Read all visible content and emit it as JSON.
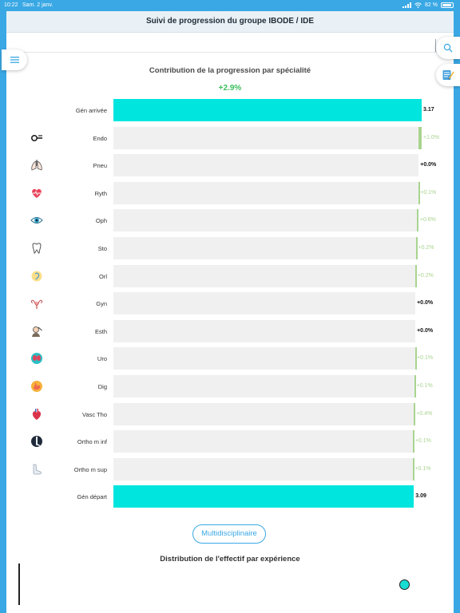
{
  "status_bar": {
    "time": "10:22",
    "date": "Sam. 2 janv.",
    "battery": "82 %"
  },
  "header": {
    "title": "Suivi de progression du groupe IBODE / IDE"
  },
  "chart_title": "Contribution de la progression par spécialité",
  "total_change": "+2.9%",
  "multi_button_label": "Multidisciplinaire",
  "distribution_title": "Distribution de l'effectif par expérience",
  "colors": {
    "accent": "#3aa8e4",
    "total": "#00e5de",
    "increase": "#a8d48f",
    "base": "#f0f0f0",
    "positive_text": "#3dbe5e"
  },
  "chart_data": {
    "type": "bar",
    "subtype": "waterfall",
    "orientation": "horizontal",
    "title": "Contribution de la progression par spécialité",
    "start": {
      "label": "Gén départ",
      "value": 3.09,
      "value_label": "3.09"
    },
    "end": {
      "label": "Gén arrivée",
      "value": 3.17,
      "value_label": "3.17"
    },
    "categories": [
      "Endo",
      "Pneu",
      "Ryth",
      "Oph",
      "Sto",
      "Orl",
      "Gyn",
      "Esth",
      "Uro",
      "Dig",
      "Vasc Tho",
      "Ortho m inf",
      "Ortho m sup"
    ],
    "icons": [
      "endoscope-icon",
      "lungs-icon",
      "heart-rhythm-icon",
      "eye-icon",
      "tooth-icon",
      "ear-icon",
      "uterus-icon",
      "cosmetic-face-icon",
      "kidneys-icon",
      "stomach-icon",
      "heart-icon",
      "leg-icon",
      "arm-icon"
    ],
    "changes": [
      1.0,
      0.0,
      0.1,
      0.6,
      0.2,
      0.2,
      0.0,
      0.0,
      0.1,
      0.1,
      0.4,
      0.1,
      0.1
    ],
    "change_labels": [
      "+1.0%",
      "+0.0%",
      "+0.1%",
      "+0.6%",
      "+0.2%",
      "+0.2%",
      "+0.0%",
      "+0.0%",
      "+0.1%",
      "+0.1%",
      "+0.4%",
      "+0.1%",
      "+0.1%"
    ]
  }
}
